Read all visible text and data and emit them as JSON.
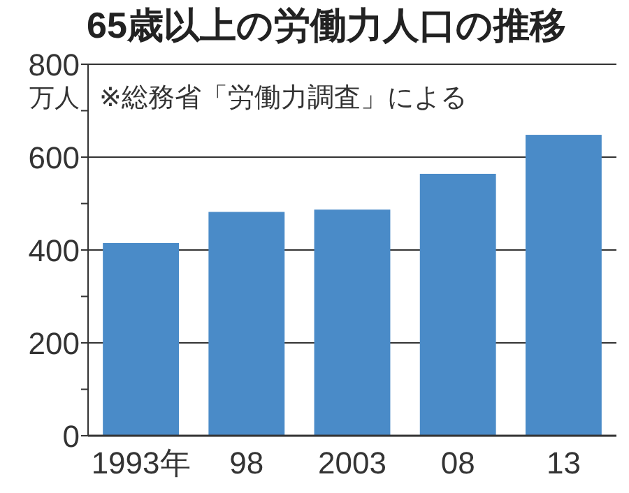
{
  "chart_data": {
    "type": "bar",
    "title": "65歳以上の労働力人口の推移",
    "ylabel": "万人",
    "annotations": [
      "※総務省「労働力調査」による"
    ],
    "categories": [
      "1993年",
      "98",
      "2003",
      "08",
      "13"
    ],
    "values": [
      415,
      482,
      487,
      564,
      648
    ],
    "color": "#4a8bc8",
    "ylim": [
      0,
      800
    ],
    "yticks": [
      0,
      {
        "value": 100,
        "label": null
      },
      200,
      {
        "value": 300,
        "label": null
      },
      400,
      {
        "value": 500,
        "label": null
      },
      600,
      {
        "value": 700,
        "label": null
      },
      800
    ],
    "grid": "y"
  }
}
